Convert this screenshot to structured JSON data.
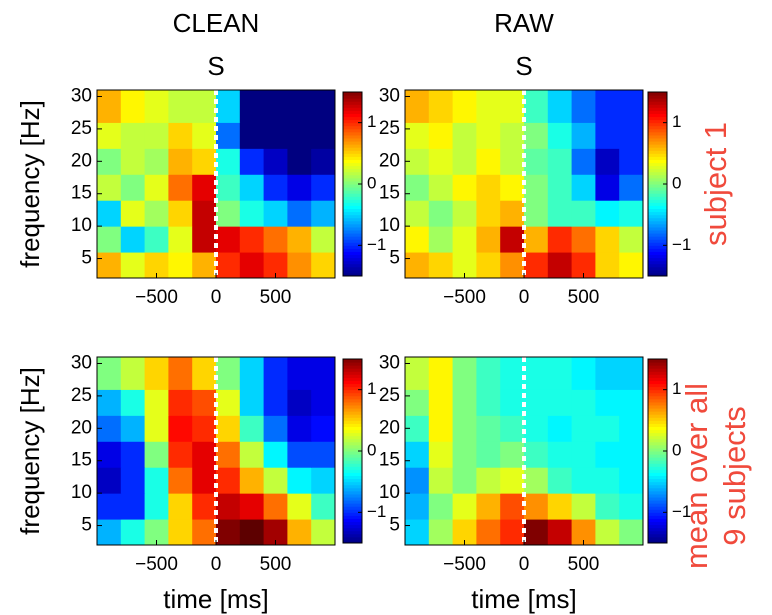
{
  "chart_data": [
    {
      "type": "heatmap",
      "title": "CLEAN",
      "event_label": "S",
      "event_x": 0,
      "ylabel": "frequency [Hz]",
      "colormap": "jet",
      "xlim": [
        -1000,
        1000
      ],
      "ylim": [
        2,
        31
      ],
      "clim": [
        -1.5,
        1.5
      ],
      "xticks": [
        {
          "value": -500,
          "label": "−500"
        },
        0,
        500
      ],
      "yticks": [
        5,
        10,
        15,
        20,
        25,
        30
      ],
      "cticks": [
        {
          "value": -1,
          "label": "−1"
        },
        0,
        1
      ],
      "xedges": [
        -1000,
        -800,
        -600,
        -400,
        -200,
        0,
        200,
        400,
        600,
        800,
        1000
      ],
      "yedges": [
        2,
        6,
        10,
        14,
        18,
        22,
        26,
        31
      ],
      "z": [
        [
          0.6,
          0.3,
          0.5,
          0.4,
          0.6,
          1,
          1.2,
          1,
          0.7,
          0.5
        ],
        [
          0,
          -0.5,
          -0.2,
          0.3,
          1.3,
          1.2,
          1,
          0.8,
          0.6,
          0.2
        ],
        [
          -0.5,
          0.3,
          0.1,
          0.5,
          1.3,
          0,
          -0.3,
          -0.5,
          -0.8,
          -0.6
        ],
        [
          0.2,
          0,
          0.3,
          0.8,
          1.2,
          -0.2,
          -0.5,
          -1,
          -1.2,
          -1
        ],
        [
          0,
          0.2,
          0.1,
          0.6,
          0.5,
          -0.3,
          -1,
          -1.3,
          -1.5,
          -1.4
        ],
        [
          0.3,
          0.2,
          0.2,
          0.5,
          0.3,
          -0.8,
          -1.5,
          -1.5,
          -1.5,
          -1.5
        ],
        [
          0.6,
          0.4,
          0.3,
          0.2,
          0.2,
          -0.5,
          -1.5,
          -1.5,
          -1.5,
          -1.5
        ]
      ]
    },
    {
      "type": "heatmap",
      "title": "RAW",
      "event_label": "S",
      "event_x": 0,
      "row_label": [
        "subject 1"
      ],
      "colormap": "jet",
      "xlim": [
        -1000,
        1000
      ],
      "ylim": [
        2,
        31
      ],
      "clim": [
        -1.5,
        1.5
      ],
      "xticks": [
        {
          "value": -500,
          "label": "−500"
        },
        0,
        500
      ],
      "yticks": [
        5,
        10,
        15,
        20,
        25,
        30
      ],
      "cticks": [
        {
          "value": -1,
          "label": "−1"
        },
        0,
        1
      ],
      "xedges": [
        -1000,
        -800,
        -600,
        -400,
        -200,
        0,
        200,
        400,
        600,
        800,
        1000
      ],
      "yedges": [
        2,
        6,
        10,
        14,
        18,
        22,
        26,
        31
      ],
      "z": [
        [
          0.6,
          0.5,
          0.3,
          0.5,
          0.7,
          1,
          1.3,
          1,
          0.5,
          0.4
        ],
        [
          0.4,
          0.1,
          0.3,
          0.6,
          1.3,
          0.6,
          1,
          0.8,
          0.5,
          0.2
        ],
        [
          0.2,
          0,
          0.2,
          0.5,
          0.6,
          0,
          -0.2,
          -0.2,
          -0.4,
          -0.3
        ],
        [
          0,
          0.2,
          0.4,
          0.5,
          0.4,
          0,
          -0.2,
          -0.5,
          -1.2,
          -0.8
        ],
        [
          0.2,
          0.3,
          0.2,
          0.4,
          0.2,
          -0.1,
          -0.2,
          -0.8,
          -1.3,
          -1
        ],
        [
          0.3,
          0.4,
          0.2,
          0.3,
          0.2,
          0,
          -0.3,
          -0.6,
          -1,
          -1
        ],
        [
          0.6,
          0.5,
          0.4,
          0.3,
          0.3,
          -0.2,
          -0.5,
          -0.8,
          -1,
          -1
        ]
      ]
    },
    {
      "type": "heatmap",
      "event_x": 0,
      "ylabel": "frequency [Hz]",
      "xlabel": "time [ms]",
      "colormap": "jet",
      "xlim": [
        -1000,
        1000
      ],
      "ylim": [
        2,
        31
      ],
      "clim": [
        -1.5,
        1.5
      ],
      "xticks": [
        {
          "value": -500,
          "label": "−500"
        },
        0,
        500
      ],
      "yticks": [
        5,
        10,
        15,
        20,
        25,
        30
      ],
      "cticks": [
        {
          "value": -1,
          "label": "−1"
        },
        0,
        1
      ],
      "xedges": [
        -1000,
        -800,
        -600,
        -400,
        -200,
        0,
        200,
        400,
        600,
        800,
        1000
      ],
      "yedges": [
        2,
        6,
        10,
        14,
        18,
        22,
        26,
        31
      ],
      "z": [
        [
          -0.6,
          -0.3,
          0,
          0.5,
          0.8,
          1.5,
          1.6,
          1.4,
          0.6,
          0.2
        ],
        [
          -1,
          -1,
          -0.3,
          0.5,
          1,
          1.3,
          1.2,
          0.8,
          0.3,
          -0.2
        ],
        [
          -1.3,
          -1,
          -0.3,
          0.8,
          1.2,
          1,
          0.6,
          0.2,
          -0.4,
          -0.5
        ],
        [
          -1.2,
          -1,
          0,
          1,
          1.2,
          0.8,
          0.2,
          -0.4,
          -0.9,
          -0.9
        ],
        [
          -0.8,
          -0.6,
          0.3,
          1.1,
          1,
          0.5,
          -0.2,
          -0.8,
          -1.2,
          -1.1
        ],
        [
          -0.6,
          -0.3,
          0.3,
          1,
          0.9,
          0.3,
          -0.5,
          -1,
          -1.3,
          -1.2
        ],
        [
          0,
          0.2,
          0.5,
          0.8,
          0.5,
          0,
          -0.5,
          -1,
          -1.2,
          -1.2
        ]
      ]
    },
    {
      "type": "heatmap",
      "event_x": 0,
      "xlabel": "time [ms]",
      "row_label": [
        "mean over all",
        "9 subjects"
      ],
      "colormap": "jet",
      "xlim": [
        -1000,
        1000
      ],
      "ylim": [
        2,
        31
      ],
      "clim": [
        -1.5,
        1.5
      ],
      "xticks": [
        {
          "value": -500,
          "label": "−500"
        },
        0,
        500
      ],
      "yticks": [
        5,
        10,
        15,
        20,
        25,
        30
      ],
      "cticks": [
        {
          "value": -1,
          "label": "−1"
        },
        0,
        1
      ],
      "xedges": [
        -1000,
        -800,
        -600,
        -400,
        -200,
        0,
        200,
        400,
        600,
        800,
        1000
      ],
      "yedges": [
        2,
        6,
        10,
        14,
        18,
        22,
        26,
        31
      ],
      "z": [
        [
          -0.5,
          0.1,
          0.5,
          0.8,
          1,
          1.5,
          1.3,
          0.7,
          0.2,
          0
        ],
        [
          -0.6,
          0,
          0.3,
          0.6,
          0.9,
          0.7,
          0.5,
          0.2,
          -0.2,
          -0.3
        ],
        [
          -0.7,
          0.2,
          0,
          0.2,
          0.3,
          0.1,
          -0.2,
          -0.3,
          -0.3,
          -0.4
        ],
        [
          -0.5,
          0.3,
          0,
          -0.1,
          0,
          -0.2,
          -0.3,
          -0.3,
          -0.4,
          -0.4
        ],
        [
          -0.2,
          0.4,
          0,
          -0.1,
          -0.2,
          -0.3,
          -0.4,
          -0.3,
          -0.3,
          -0.4
        ],
        [
          0,
          0.4,
          0,
          -0.2,
          -0.3,
          -0.3,
          -0.3,
          -0.3,
          -0.4,
          -0.4
        ],
        [
          0.2,
          0.4,
          0,
          -0.2,
          -0.3,
          -0.3,
          -0.3,
          -0.4,
          -0.5,
          -0.5
        ]
      ]
    }
  ]
}
